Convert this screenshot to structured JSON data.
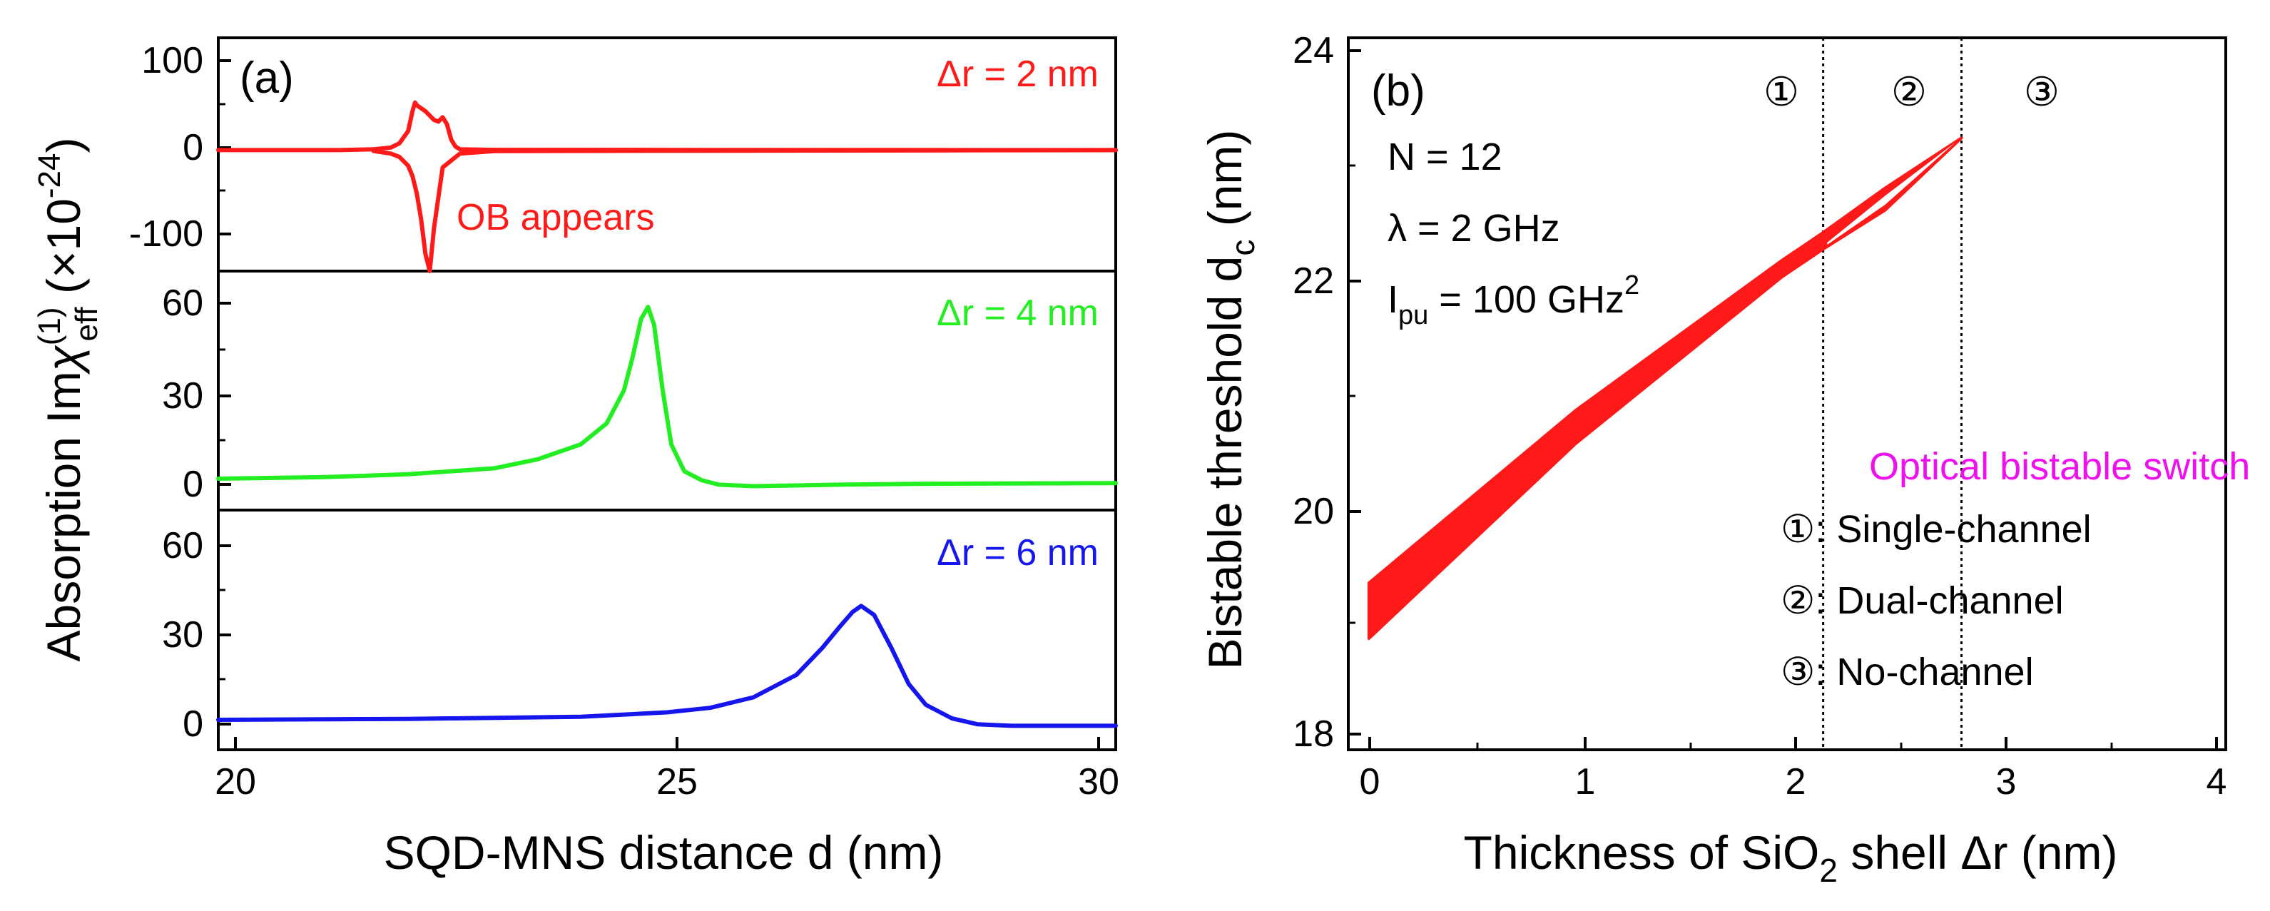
{
  "chart_data": [
    {
      "type": "line",
      "panel_label": "(a)",
      "xlabel": "SQD-MNS distance d (nm)",
      "ylabel": {
        "prefix": "Absorption Im",
        "symbol": "χ",
        "sup": "(1)",
        "sub": "eff",
        "factor": " (×10",
        "exp": "-24",
        "close": ")"
      },
      "xlim": [
        19.8,
        30.2
      ],
      "xticks": [
        20,
        25,
        30
      ],
      "subplots": [
        {
          "name": "Δr = 2 nm",
          "label": "Δr = 2 nm",
          "color": "#ff1a1a",
          "ylim": [
            -140,
            130
          ],
          "yticks": [
            -100,
            0,
            100
          ],
          "annotation": "OB appears",
          "series": [
            {
              "name": "upper branch",
              "x": [
                19.8,
                21.2,
                21.6,
                21.8,
                21.9,
                22.0,
                22.05,
                22.08,
                22.1
              ],
              "y": [
                0,
                0,
                1,
                3,
                8,
                22,
                45,
                55,
                52
              ]
            },
            {
              "name": "fold",
              "x": [
                22.1,
                22.2,
                22.25,
                22.3,
                22.35,
                22.4,
                22.45,
                22.5,
                22.55,
                22.6,
                23,
                30.2
              ],
              "y": [
                52,
                45,
                40,
                35,
                33,
                38,
                30,
                12,
                4,
                1,
                0.3,
                0
              ]
            },
            {
              "name": "lower branch",
              "x": [
                21.6,
                21.8,
                21.9,
                22.0,
                22.05,
                22.1,
                22.15,
                22.2,
                22.25,
                22.3,
                22.4,
                22.6,
                23.0,
                30.2
              ],
              "y": [
                -1,
                -4,
                -8,
                -18,
                -30,
                -50,
                -80,
                -120,
                -140,
                -90,
                -20,
                -4,
                -1,
                0
              ]
            }
          ]
        },
        {
          "name": "Δr = 4 nm",
          "label": "Δr = 4 nm",
          "color": "#22ee22",
          "ylim": [
            -10,
            70
          ],
          "yticks": [
            0,
            30,
            60
          ],
          "series": [
            {
              "name": "Δr = 4 nm",
              "x": [
                19.8,
                21,
                22,
                23,
                23.5,
                24.0,
                24.3,
                24.5,
                24.6,
                24.7,
                24.78,
                24.85,
                24.95,
                25.05,
                25.2,
                25.4,
                25.6,
                26,
                27,
                28,
                30.2
              ],
              "y": [
                0.5,
                1,
                2,
                4,
                7,
                12,
                19,
                30,
                41,
                54,
                58,
                52,
                30,
                12,
                3,
                0,
                -1.5,
                -2,
                -1.5,
                -1.2,
                -1
              ]
            }
          ]
        },
        {
          "name": "Δr = 6 nm",
          "label": "Δr = 6 nm",
          "color": "#1515ee",
          "ylim": [
            -10,
            70
          ],
          "yticks": [
            0,
            30,
            60
          ],
          "series": [
            {
              "name": "Δr = 6 nm",
              "x": [
                19.8,
                22,
                24,
                25,
                25.5,
                26,
                26.5,
                26.8,
                27.0,
                27.15,
                27.25,
                27.4,
                27.6,
                27.8,
                28.0,
                28.3,
                28.6,
                29,
                30.2
              ],
              "y": [
                0,
                0.3,
                1,
                2.5,
                4,
                7.5,
                15,
                24,
                31,
                36,
                38,
                35,
                24,
                12,
                5,
                0.5,
                -1.5,
                -2,
                -2
              ]
            }
          ]
        }
      ]
    },
    {
      "type": "area",
      "panel_label": "(b)",
      "xlabel": {
        "pre": "Thickness of SiO",
        "sub": "2",
        "post": " shell Δr (nm)"
      },
      "ylabel": {
        "pre": "Bistable threshold d",
        "sub": "c",
        "post": " (nm)"
      },
      "xlim": [
        -0.1,
        4.15
      ],
      "ylim": [
        17.8,
        24.2
      ],
      "xticks": [
        0,
        1,
        2,
        3,
        4
      ],
      "yticks": [
        18,
        20,
        22,
        24
      ],
      "color": "#ff1a1a",
      "series": [
        {
          "name": "upper threshold",
          "x": [
            0,
            1,
            2,
            2.2,
            2.5,
            2.87
          ],
          "y": [
            19.3,
            20.85,
            22.2,
            22.45,
            22.85,
            23.3
          ]
        },
        {
          "name": "lower threshold",
          "x": [
            0,
            1,
            2,
            2.2,
            2.5,
            2.87
          ],
          "y": [
            18.8,
            20.55,
            22.05,
            22.3,
            22.65,
            23.3
          ]
        }
      ],
      "boundaries": [
        2.2,
        2.87
      ],
      "region_labels": [
        "①",
        "②",
        "③"
      ],
      "params": [
        {
          "text": "N = 12"
        },
        {
          "text": "λ = 2 GHz"
        },
        {
          "pre": "I",
          "sub": "pu",
          "post": " = 100 GHz",
          "sup": "2"
        }
      ],
      "legend_title": "Optical bistable switch",
      "legend_title_color": "#ee11ee",
      "legend_items": [
        "①: Single-channel",
        "②: Dual-channel",
        "③: No-channel"
      ]
    }
  ]
}
